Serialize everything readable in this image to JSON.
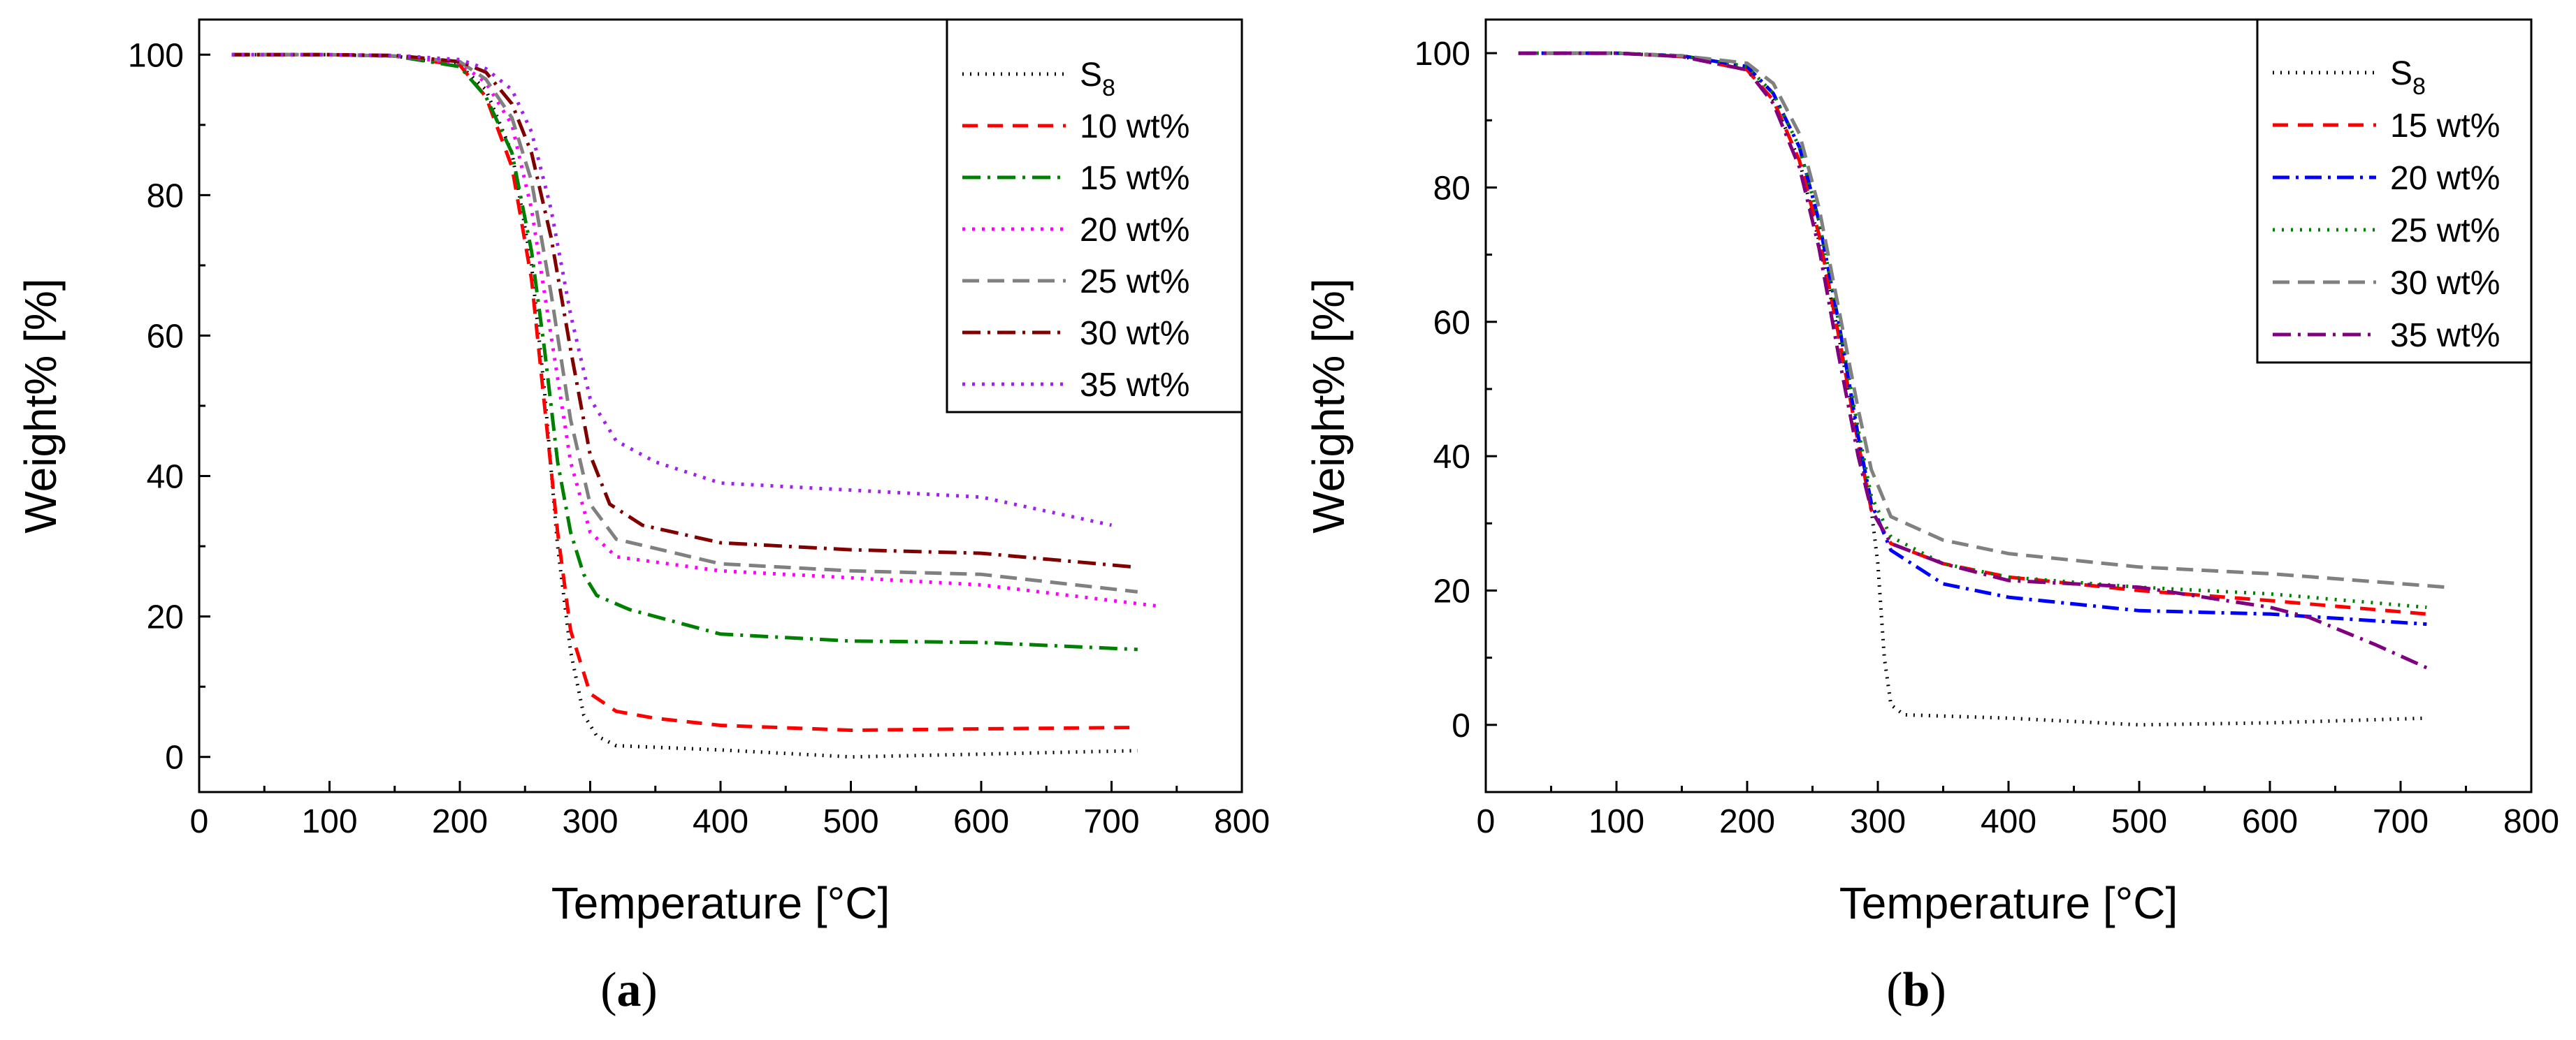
{
  "chart_data": [
    {
      "type": "line",
      "panel_label": "(a)",
      "panel_letter": "a",
      "xlabel": "Temperature [°C]",
      "ylabel": "Weight% [%]",
      "xlim": [
        0,
        800
      ],
      "ylim": [
        -5,
        105
      ],
      "x_ticks": [
        0,
        100,
        200,
        300,
        400,
        500,
        600,
        700,
        800
      ],
      "y_ticks": [
        0,
        20,
        40,
        60,
        80,
        100
      ],
      "legend_position": "top-right",
      "series": [
        {
          "name": "S8",
          "name_main": "S",
          "name_sub": "8",
          "color": "#000000",
          "dash": "2 9",
          "points": [
            [
              25,
              100
            ],
            [
              100,
              100
            ],
            [
              150,
              99.8
            ],
            [
              200,
              98.5
            ],
            [
              220,
              95
            ],
            [
              240,
              86
            ],
            [
              255,
              70
            ],
            [
              265,
              52
            ],
            [
              275,
              30
            ],
            [
              285,
              15
            ],
            [
              295,
              6
            ],
            [
              305,
              3
            ],
            [
              320,
              1.6
            ],
            [
              400,
              1
            ],
            [
              500,
              0
            ],
            [
              600,
              0.4
            ],
            [
              720,
              0.9
            ]
          ]
        },
        {
          "name": "10 wt%",
          "color": "#ff0000",
          "dash": "22 14",
          "points": [
            [
              25,
              100
            ],
            [
              100,
              100
            ],
            [
              150,
              99.8
            ],
            [
              200,
              98.5
            ],
            [
              220,
              94
            ],
            [
              240,
              84
            ],
            [
              255,
              68
            ],
            [
              265,
              50
            ],
            [
              275,
              32
            ],
            [
              285,
              18
            ],
            [
              300,
              9
            ],
            [
              320,
              6.5
            ],
            [
              350,
              5.5
            ],
            [
              400,
              4.5
            ],
            [
              500,
              3.8
            ],
            [
              600,
              4
            ],
            [
              720,
              4.2
            ]
          ]
        },
        {
          "name": "15 wt%",
          "color": "#008000",
          "dash": "26 10 4 10",
          "points": [
            [
              25,
              100
            ],
            [
              100,
              100
            ],
            [
              150,
              99.8
            ],
            [
              200,
              98.3
            ],
            [
              220,
              94
            ],
            [
              240,
              86
            ],
            [
              255,
              72
            ],
            [
              265,
              58
            ],
            [
              275,
              42
            ],
            [
              285,
              32
            ],
            [
              295,
              26
            ],
            [
              305,
              23
            ],
            [
              330,
              21
            ],
            [
              400,
              17.5
            ],
            [
              500,
              16.5
            ],
            [
              600,
              16.3
            ],
            [
              720,
              15.3
            ]
          ]
        },
        {
          "name": "20 wt%",
          "color": "#ff00ff",
          "dash": "4 10",
          "points": [
            [
              25,
              100
            ],
            [
              100,
              100
            ],
            [
              150,
              99.8
            ],
            [
              200,
              98.8
            ],
            [
              220,
              96
            ],
            [
              240,
              90
            ],
            [
              255,
              78
            ],
            [
              270,
              60
            ],
            [
              285,
              42
            ],
            [
              300,
              32
            ],
            [
              320,
              28.5
            ],
            [
              400,
              26.5
            ],
            [
              500,
              25.5
            ],
            [
              600,
              24.5
            ],
            [
              735,
              21.5
            ]
          ]
        },
        {
          "name": "25 wt%",
          "color": "#808080",
          "dash": "24 12",
          "points": [
            [
              25,
              100
            ],
            [
              100,
              100
            ],
            [
              150,
              99.8
            ],
            [
              200,
              99
            ],
            [
              220,
              96.5
            ],
            [
              240,
              91
            ],
            [
              255,
              82
            ],
            [
              270,
              66
            ],
            [
              285,
              48
            ],
            [
              300,
              36
            ],
            [
              320,
              31
            ],
            [
              400,
              27.5
            ],
            [
              500,
              26.5
            ],
            [
              600,
              26
            ],
            [
              720,
              23.5
            ]
          ]
        },
        {
          "name": "30 wt%",
          "color": "#800000",
          "dash": "26 10 4 10",
          "points": [
            [
              25,
              100
            ],
            [
              100,
              100
            ],
            [
              150,
              99.9
            ],
            [
              200,
              99
            ],
            [
              220,
              97.5
            ],
            [
              240,
              93
            ],
            [
              255,
              86
            ],
            [
              270,
              74
            ],
            [
              285,
              58
            ],
            [
              300,
              43
            ],
            [
              315,
              36
            ],
            [
              340,
              33
            ],
            [
              400,
              30.5
            ],
            [
              500,
              29.5
            ],
            [
              600,
              29
            ],
            [
              720,
              27
            ]
          ]
        },
        {
          "name": "35 wt%",
          "color": "#a020f0",
          "dash": "4 10",
          "points": [
            [
              25,
              100
            ],
            [
              100,
              100
            ],
            [
              150,
              99.9
            ],
            [
              200,
              99.3
            ],
            [
              220,
              98
            ],
            [
              240,
              95
            ],
            [
              255,
              89
            ],
            [
              270,
              78
            ],
            [
              285,
              63
            ],
            [
              300,
              51
            ],
            [
              320,
              45
            ],
            [
              350,
              42
            ],
            [
              400,
              39
            ],
            [
              500,
              38
            ],
            [
              600,
              37
            ],
            [
              700,
              33
            ]
          ]
        }
      ]
    },
    {
      "type": "line",
      "panel_label": "(b)",
      "panel_letter": "b",
      "xlabel": "Temperature [°C]",
      "ylabel": "Weight% [%]",
      "xlim": [
        0,
        800
      ],
      "ylim": [
        -10,
        105
      ],
      "x_ticks": [
        0,
        100,
        200,
        300,
        400,
        500,
        600,
        700,
        800
      ],
      "y_ticks": [
        0,
        20,
        40,
        60,
        80,
        100
      ],
      "legend_position": "top-right",
      "series": [
        {
          "name": "S8",
          "name_main": "S",
          "name_sub": "8",
          "color": "#000000",
          "dash": "2 9",
          "points": [
            [
              25,
              100
            ],
            [
              100,
              100
            ],
            [
              150,
              99.5
            ],
            [
              200,
              97.5
            ],
            [
              220,
              93
            ],
            [
              240,
              84
            ],
            [
              255,
              72
            ],
            [
              270,
              58
            ],
            [
              285,
              42
            ],
            [
              295,
              32
            ],
            [
              300,
              24
            ],
            [
              305,
              10
            ],
            [
              310,
              3
            ],
            [
              320,
              1.5
            ],
            [
              400,
              1
            ],
            [
              500,
              0
            ],
            [
              600,
              0.3
            ],
            [
              720,
              1
            ]
          ]
        },
        {
          "name": "15 wt%",
          "color": "#ff0000",
          "dash": "22 14",
          "points": [
            [
              25,
              100
            ],
            [
              100,
              100
            ],
            [
              150,
              99.5
            ],
            [
              200,
              97.5
            ],
            [
              220,
              93
            ],
            [
              240,
              84
            ],
            [
              255,
              73
            ],
            [
              270,
              58
            ],
            [
              285,
              42
            ],
            [
              295,
              32
            ],
            [
              310,
              27
            ],
            [
              350,
              24
            ],
            [
              400,
              22
            ],
            [
              500,
              20
            ],
            [
              600,
              18.5
            ],
            [
              720,
              16.5
            ]
          ]
        },
        {
          "name": "20 wt%",
          "color": "#0000ff",
          "dash": "24 9 4 9",
          "points": [
            [
              25,
              100
            ],
            [
              100,
              100
            ],
            [
              150,
              99.6
            ],
            [
              200,
              98
            ],
            [
              220,
              94
            ],
            [
              240,
              86
            ],
            [
              255,
              75
            ],
            [
              270,
              60
            ],
            [
              285,
              43
            ],
            [
              295,
              33
            ],
            [
              310,
              26
            ],
            [
              350,
              21
            ],
            [
              400,
              19
            ],
            [
              500,
              17
            ],
            [
              600,
              16.5
            ],
            [
              720,
              15
            ]
          ]
        },
        {
          "name": "25 wt%",
          "color": "#008000",
          "dash": "3 10",
          "points": [
            [
              25,
              100
            ],
            [
              100,
              100
            ],
            [
              150,
              99.6
            ],
            [
              200,
              98
            ],
            [
              220,
              94
            ],
            [
              240,
              86
            ],
            [
              255,
              75
            ],
            [
              270,
              60
            ],
            [
              285,
              44
            ],
            [
              295,
              34
            ],
            [
              310,
              28
            ],
            [
              350,
              24
            ],
            [
              400,
              22
            ],
            [
              500,
              20.5
            ],
            [
              600,
              19.5
            ],
            [
              720,
              17.5
            ]
          ]
        },
        {
          "name": "30 wt%",
          "color": "#808080",
          "dash": "24 12",
          "points": [
            [
              25,
              100
            ],
            [
              100,
              100
            ],
            [
              150,
              99.6
            ],
            [
              200,
              98.5
            ],
            [
              220,
              95.5
            ],
            [
              240,
              88
            ],
            [
              255,
              77
            ],
            [
              270,
              62
            ],
            [
              285,
              47
            ],
            [
              295,
              38
            ],
            [
              310,
              31
            ],
            [
              350,
              27.5
            ],
            [
              400,
              25.5
            ],
            [
              500,
              23.5
            ],
            [
              600,
              22.5
            ],
            [
              735,
              20.5
            ]
          ]
        },
        {
          "name": "35 wt%",
          "color": "#800080",
          "dash": "26 10 4 10",
          "points": [
            [
              25,
              100
            ],
            [
              100,
              100
            ],
            [
              150,
              99.5
            ],
            [
              200,
              97.5
            ],
            [
              220,
              92.5
            ],
            [
              240,
              83
            ],
            [
              255,
              71
            ],
            [
              270,
              55
            ],
            [
              285,
              40
            ],
            [
              295,
              32
            ],
            [
              310,
              27
            ],
            [
              350,
              24
            ],
            [
              400,
              21.5
            ],
            [
              500,
              20.5
            ],
            [
              600,
              17.5
            ],
            [
              630,
              16
            ],
            [
              680,
              12
            ],
            [
              720,
              8.5
            ]
          ]
        }
      ]
    }
  ]
}
